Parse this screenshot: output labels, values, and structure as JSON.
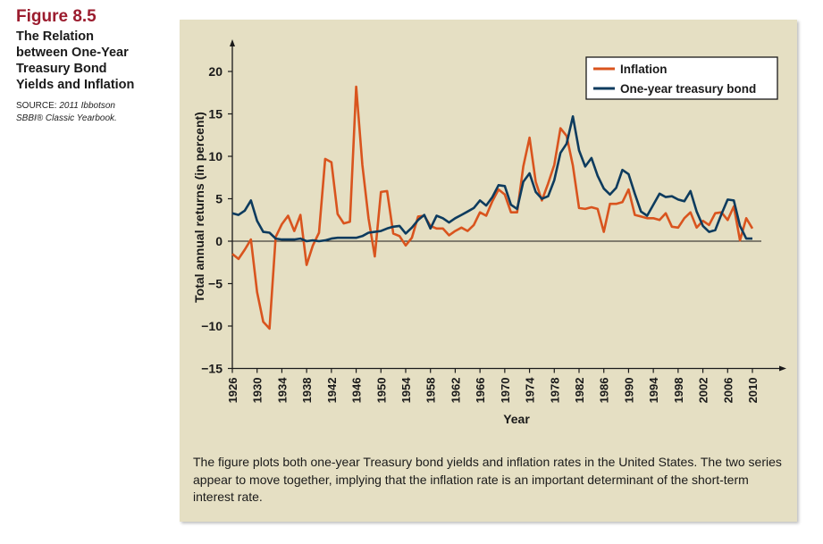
{
  "sidebar": {
    "figure_number": "Figure 8.5",
    "title_lines": [
      "The Relation",
      "between One-Year",
      "Treasury Bond",
      "Yields and Inflation"
    ],
    "source_prefix": "SOURCE: ",
    "source_italic_1": "2011 Ibbotson",
    "source_italic_2": "SBBI® Classic Yearbook."
  },
  "caption": "The figure plots both one-year Treasury bond yields and inflation rates in the United States. The two series appear to move together, implying that the inflation rate is an important determinant of the short-term interest rate.",
  "colors": {
    "inflation": "#d9541e",
    "treasury": "#0d3b5e",
    "panel": "#e5dfc3",
    "title": "#9b1c2e"
  },
  "chart_data": {
    "type": "line",
    "xlabel": "Year",
    "ylabel": "Total annual returns (in percent)",
    "ylim": [
      -15,
      22
    ],
    "xlim": [
      1926,
      2010
    ],
    "yticks": [
      20,
      15,
      10,
      5,
      0,
      -5,
      -10,
      -15
    ],
    "ytick_labels": [
      "20",
      "15",
      "10",
      "5",
      "0",
      "−5",
      "−10",
      "−15"
    ],
    "xticks": [
      1926,
      1930,
      1934,
      1938,
      1942,
      1946,
      1950,
      1954,
      1958,
      1962,
      1966,
      1970,
      1974,
      1978,
      1982,
      1986,
      1990,
      1994,
      1998,
      2002,
      2006,
      2010
    ],
    "legend_position": "top-right",
    "series": [
      {
        "name": "Inflation",
        "x": [
          1926,
          1927,
          1928,
          1929,
          1930,
          1931,
          1932,
          1933,
          1934,
          1935,
          1936,
          1937,
          1938,
          1939,
          1940,
          1941,
          1942,
          1943,
          1944,
          1945,
          1946,
          1947,
          1948,
          1949,
          1950,
          1951,
          1952,
          1953,
          1954,
          1955,
          1956,
          1957,
          1958,
          1959,
          1960,
          1961,
          1962,
          1963,
          1964,
          1965,
          1966,
          1967,
          1968,
          1969,
          1970,
          1971,
          1972,
          1973,
          1974,
          1975,
          1976,
          1977,
          1978,
          1979,
          1980,
          1981,
          1982,
          1983,
          1984,
          1985,
          1986,
          1987,
          1988,
          1989,
          1990,
          1991,
          1992,
          1993,
          1994,
          1995,
          1996,
          1997,
          1998,
          1999,
          2000,
          2001,
          2002,
          2003,
          2004,
          2005,
          2006,
          2007,
          2008,
          2009,
          2010
        ],
        "values": [
          -1.5,
          -2.1,
          -1.0,
          0.2,
          -6.0,
          -9.5,
          -10.3,
          0.5,
          2.0,
          3.0,
          1.2,
          3.1,
          -2.8,
          -0.5,
          1.0,
          9.7,
          9.3,
          3.2,
          2.1,
          2.3,
          18.2,
          9.0,
          2.7,
          -1.8,
          5.8,
          5.9,
          0.9,
          0.6,
          -0.5,
          0.4,
          2.9,
          3.0,
          1.8,
          1.5,
          1.5,
          0.7,
          1.2,
          1.6,
          1.2,
          1.9,
          3.4,
          3.0,
          4.7,
          6.1,
          5.5,
          3.4,
          3.4,
          8.8,
          12.2,
          7.0,
          4.8,
          6.8,
          9.0,
          13.3,
          12.4,
          8.9,
          3.9,
          3.8,
          4.0,
          3.8,
          1.1,
          4.4,
          4.4,
          4.6,
          6.1,
          3.1,
          2.9,
          2.7,
          2.7,
          2.5,
          3.3,
          1.7,
          1.6,
          2.7,
          3.4,
          1.6,
          2.4,
          1.9,
          3.3,
          3.4,
          2.5,
          4.1,
          0.1,
          2.7,
          1.5
        ]
      },
      {
        "name": "One-year treasury bond",
        "x": [
          1926,
          1927,
          1928,
          1929,
          1930,
          1931,
          1932,
          1933,
          1934,
          1935,
          1936,
          1937,
          1938,
          1939,
          1940,
          1941,
          1942,
          1943,
          1944,
          1945,
          1946,
          1947,
          1948,
          1949,
          1950,
          1951,
          1952,
          1953,
          1954,
          1955,
          1956,
          1957,
          1958,
          1959,
          1960,
          1961,
          1962,
          1963,
          1964,
          1965,
          1966,
          1967,
          1968,
          1969,
          1970,
          1971,
          1972,
          1973,
          1974,
          1975,
          1976,
          1977,
          1978,
          1979,
          1980,
          1981,
          1982,
          1983,
          1984,
          1985,
          1986,
          1987,
          1988,
          1989,
          1990,
          1991,
          1992,
          1993,
          1994,
          1995,
          1996,
          1997,
          1998,
          1999,
          2000,
          2001,
          2002,
          2003,
          2004,
          2005,
          2006,
          2007,
          2008,
          2009,
          2010
        ],
        "values": [
          3.3,
          3.1,
          3.6,
          4.8,
          2.4,
          1.1,
          1.0,
          0.3,
          0.2,
          0.2,
          0.2,
          0.3,
          0.0,
          0.1,
          0.0,
          0.1,
          0.3,
          0.4,
          0.4,
          0.4,
          0.4,
          0.6,
          1.0,
          1.1,
          1.2,
          1.5,
          1.7,
          1.8,
          0.9,
          1.6,
          2.5,
          3.1,
          1.5,
          3.0,
          2.7,
          2.2,
          2.7,
          3.1,
          3.5,
          3.9,
          4.8,
          4.2,
          5.2,
          6.6,
          6.5,
          4.3,
          3.8,
          7.0,
          8.0,
          5.8,
          5.0,
          5.3,
          7.2,
          10.4,
          11.5,
          14.7,
          10.7,
          8.8,
          9.8,
          7.7,
          6.2,
          5.5,
          6.3,
          8.4,
          7.9,
          5.6,
          3.5,
          3.0,
          4.3,
          5.6,
          5.2,
          5.3,
          4.9,
          4.7,
          5.9,
          3.5,
          1.8,
          1.1,
          1.3,
          3.2,
          4.9,
          4.8,
          1.8,
          0.3,
          0.3
        ]
      }
    ]
  }
}
